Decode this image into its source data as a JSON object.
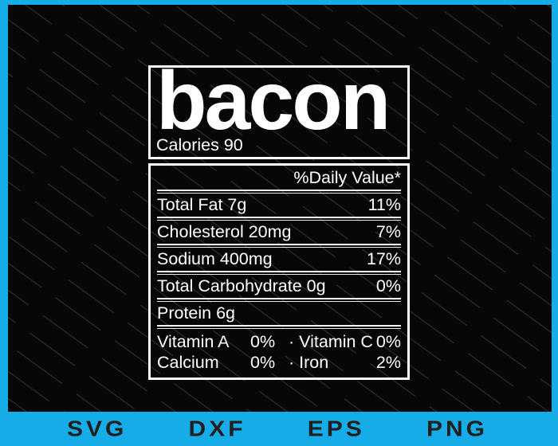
{
  "label": {
    "title": "bacon",
    "calories": "Calories 90",
    "daily_value_header": "%Daily Value*",
    "rows": [
      {
        "name": "Total Fat 7g",
        "value": "11%"
      },
      {
        "name": "Cholesterol 20mg",
        "value": "7%"
      },
      {
        "name": "Sodium 400mg",
        "value": "17%"
      },
      {
        "name": "Total Carbohydrate 0g",
        "value": "0%"
      },
      {
        "name": "Protein 6g",
        "value": ""
      }
    ],
    "micronutrients": [
      {
        "name": "Vitamin A",
        "value": "0%",
        "name2": "· Vitamin C",
        "value2": "0%"
      },
      {
        "name": "Calcium",
        "value": "0%",
        "name2": "· Iron",
        "value2": "2%"
      }
    ]
  },
  "footer": {
    "formats": [
      "SVG",
      "DXF",
      "EPS",
      "PNG"
    ]
  },
  "colors": {
    "accent_cyan": "#15ACE8",
    "background": "#070707",
    "label_text": "#FFFFFF",
    "footer_text": "#1F1F1F"
  }
}
